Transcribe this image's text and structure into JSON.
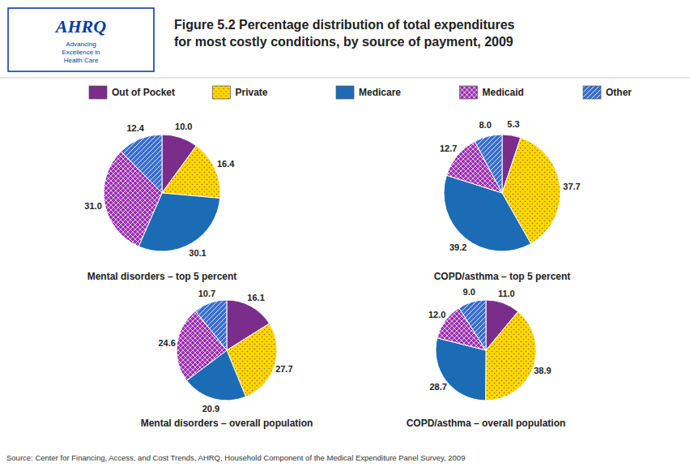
{
  "title": "Figure 5.2 Percentage distribution of total expenditures\nfor most costly conditions, by source of payment, 2009",
  "legend": "top",
  "annotations": [
    "AHRQ",
    "Advancing\nExcellence in\nHealth Care",
    "Source: Center for Financing, Access, and Cost Trends, AHRQ, Household Component of the Medical Expenditure Panel Survey, 2009"
  ],
  "chart_data": [
    {
      "type": "pie",
      "title": "Mental disorders – top 5 percent",
      "categories": [
        "Out of Pocket",
        "Private",
        "Medicare",
        "Medicaid",
        "Other"
      ],
      "values": [
        10.0,
        16.4,
        30.1,
        31.0,
        12.4
      ],
      "value_labels": [
        "10.0",
        "16.4",
        "30.1",
        "31.0",
        "12.4"
      ],
      "colors": [
        "#7B2D8B",
        "#FFD700",
        "#1C6BB5",
        "#9B30B0",
        "#3B6FCC"
      ],
      "data_labels": true
    },
    {
      "type": "pie",
      "title": "COPD/asthma – top 5 percent",
      "categories": [
        "Out of Pocket",
        "Private",
        "Medicare",
        "Medicaid",
        "Other"
      ],
      "values": [
        5.3,
        37.7,
        39.2,
        12.7,
        8.0
      ],
      "value_labels": [
        "5.3",
        "37.7",
        "39.2",
        "12.7",
        "8.0"
      ],
      "colors": [
        "#7B2D8B",
        "#FFD700",
        "#1C6BB5",
        "#9B30B0",
        "#3B6FCC"
      ],
      "data_labels": true
    },
    {
      "type": "pie",
      "title": "Mental disorders – overall population",
      "categories": [
        "Out of Pocket",
        "Private",
        "Medicare",
        "Medicaid",
        "Other"
      ],
      "values": [
        16.1,
        27.7,
        20.9,
        24.6,
        10.7
      ],
      "value_labels": [
        "16.1",
        "27.7",
        "20.9",
        "24.6",
        "10.7"
      ],
      "colors": [
        "#7B2D8B",
        "#FFD700",
        "#1C6BB5",
        "#9B30B0",
        "#3B6FCC"
      ],
      "data_labels": true
    },
    {
      "type": "pie",
      "title": "COPD/asthma – overall population",
      "categories": [
        "Out of Pocket",
        "Private",
        "Medicare",
        "Medicaid",
        "Other"
      ],
      "values": [
        11.0,
        38.9,
        28.7,
        12.0,
        9.0
      ],
      "value_labels": [
        "11.0",
        "38.9",
        "28.7",
        "12.0",
        "9.0"
      ],
      "colors": [
        "#7B2D8B",
        "#FFD700",
        "#1C6BB5",
        "#9B30B0",
        "#3B6FCC"
      ],
      "data_labels": true
    }
  ]
}
